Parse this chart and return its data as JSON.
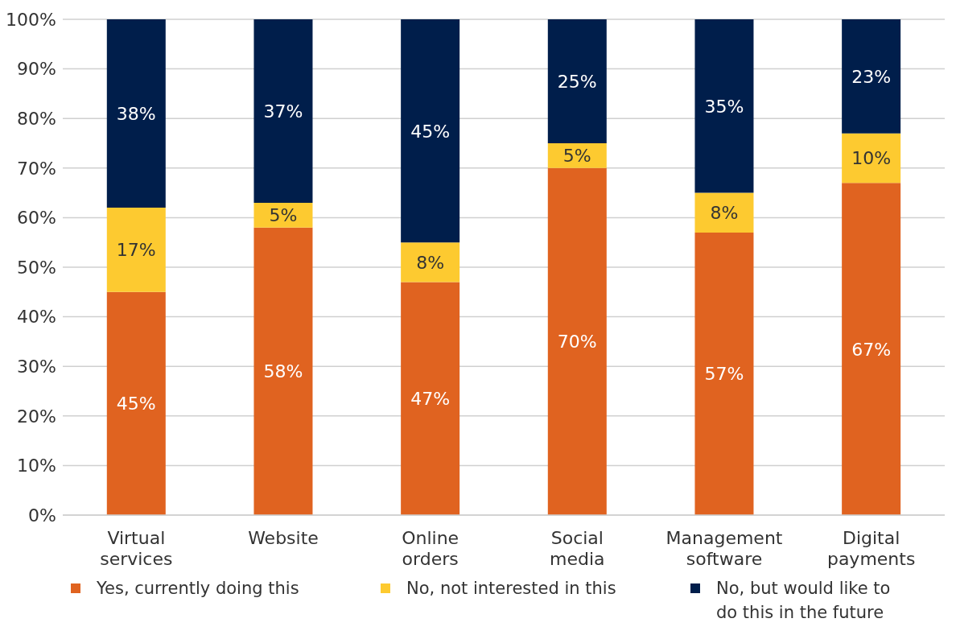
{
  "chart_data": {
    "type": "bar",
    "stacked": true,
    "categories": [
      "Virtual services",
      "Website",
      "Online orders",
      "Social media",
      "Management software",
      "Digital payments"
    ],
    "series": [
      {
        "name": "Yes, currently doing this",
        "color": "#e06320",
        "values": [
          45,
          58,
          47,
          70,
          57,
          67
        ],
        "value_labels": [
          "45%",
          "58%",
          "47%",
          "70%",
          "57%",
          "67%"
        ]
      },
      {
        "name": "No, not interested in this",
        "color": "#fdca30",
        "values": [
          17,
          5,
          8,
          5,
          8,
          10
        ],
        "value_labels": [
          "17%",
          "5%",
          "8%",
          "5%",
          "8%",
          "10%"
        ]
      },
      {
        "name": "No, but would like to do this in the future",
        "color": "#001e4b",
        "values": [
          38,
          37,
          45,
          25,
          35,
          23
        ],
        "value_labels": [
          "38%",
          "37%",
          "45%",
          "25%",
          "35%",
          "23%"
        ]
      }
    ],
    "ylim": [
      0,
      100
    ],
    "yticks": [
      {
        "value": 0,
        "label": "0%"
      },
      {
        "value": 10,
        "label": "10%"
      },
      {
        "value": 20,
        "label": "20%"
      },
      {
        "value": 30,
        "label": "30%"
      },
      {
        "value": 40,
        "label": "40%"
      },
      {
        "value": 50,
        "label": "50%"
      },
      {
        "value": 60,
        "label": "60%"
      },
      {
        "value": 70,
        "label": "70%"
      },
      {
        "value": 80,
        "label": "80%"
      },
      {
        "value": 90,
        "label": "90%"
      },
      {
        "value": 100,
        "label": "100%"
      }
    ],
    "grid": "y",
    "legend": "bottom"
  }
}
